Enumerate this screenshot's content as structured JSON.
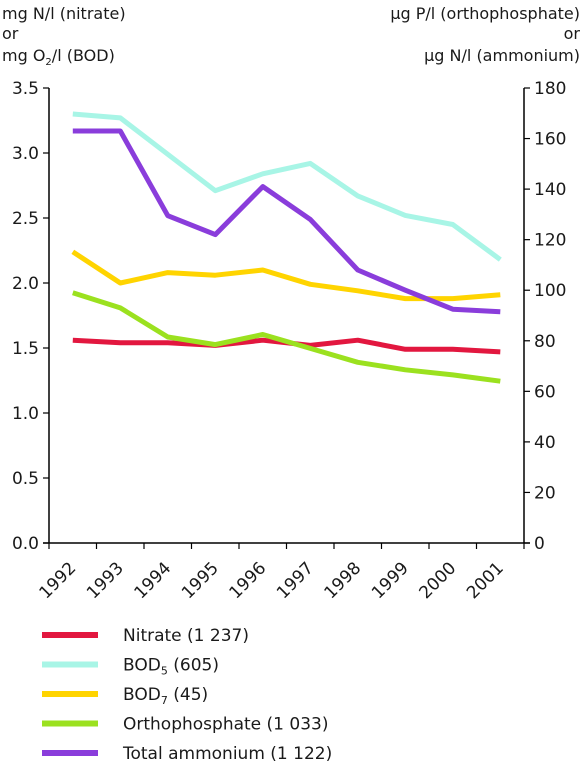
{
  "chart_data": {
    "type": "line",
    "left_axis_label_lines": [
      "mg N/l (nitrate)",
      "or",
      "mg O",
      "/l (BOD)"
    ],
    "right_axis_label_lines": [
      "µg P/l (orthophosphate)",
      "or",
      "µg N/l (ammonium)"
    ],
    "categories": [
      "1992",
      "1993",
      "1994",
      "1995",
      "1996",
      "1997",
      "1998",
      "1999",
      "2000",
      "2001"
    ],
    "y_left": {
      "ylim": [
        0,
        3.5
      ],
      "ticks": [
        "0.0",
        "0.5",
        "1.0",
        "1.5",
        "2.0",
        "2.5",
        "3.0",
        "3.5"
      ]
    },
    "y_right": {
      "ylim": [
        0,
        180
      ],
      "ticks": [
        "0",
        "20",
        "40",
        "60",
        "80",
        "100",
        "120",
        "140",
        "160",
        "180"
      ]
    },
    "grid": false,
    "legend_position": "bottom",
    "series": [
      {
        "name": "Nitrate (1 237)",
        "legend_main": "Nitrate (1 237)",
        "axis": "left",
        "color": "#e2173f",
        "values": [
          1.56,
          1.54,
          1.54,
          1.52,
          1.56,
          1.52,
          1.56,
          1.49,
          1.49,
          1.47
        ]
      },
      {
        "name": "BOD5 (605)",
        "legend_main": "BOD",
        "legend_sub": "5",
        "legend_rest": " (605)",
        "axis": "left",
        "color": "#a8f5e6",
        "values": [
          3.3,
          3.27,
          2.99,
          2.71,
          2.84,
          2.92,
          2.67,
          2.52,
          2.45,
          2.18
        ]
      },
      {
        "name": "BOD7 (45)",
        "legend_main": "BOD",
        "legend_sub": "7",
        "legend_rest": " (45)",
        "axis": "left",
        "color": "#ffd400",
        "values": [
          2.24,
          2.0,
          2.08,
          2.06,
          2.1,
          1.99,
          1.94,
          1.88,
          1.88,
          1.91
        ]
      },
      {
        "name": "Orthophosphate (1 033)",
        "legend_main": "Orthophosphate (1 033)",
        "axis": "right",
        "color": "#9be11f",
        "values": [
          99.0,
          93.0,
          81.5,
          78.5,
          82.5,
          77.0,
          71.5,
          68.5,
          66.5,
          64.0
        ]
      },
      {
        "name": "Total ammonium (1 122)",
        "legend_main": "Total ammonium (1 122)",
        "axis": "right",
        "color": "#8a3ddb",
        "values": [
          163.0,
          163.0,
          129.5,
          122.0,
          141.0,
          128.0,
          108.0,
          100.0,
          92.5,
          91.5
        ]
      }
    ]
  }
}
